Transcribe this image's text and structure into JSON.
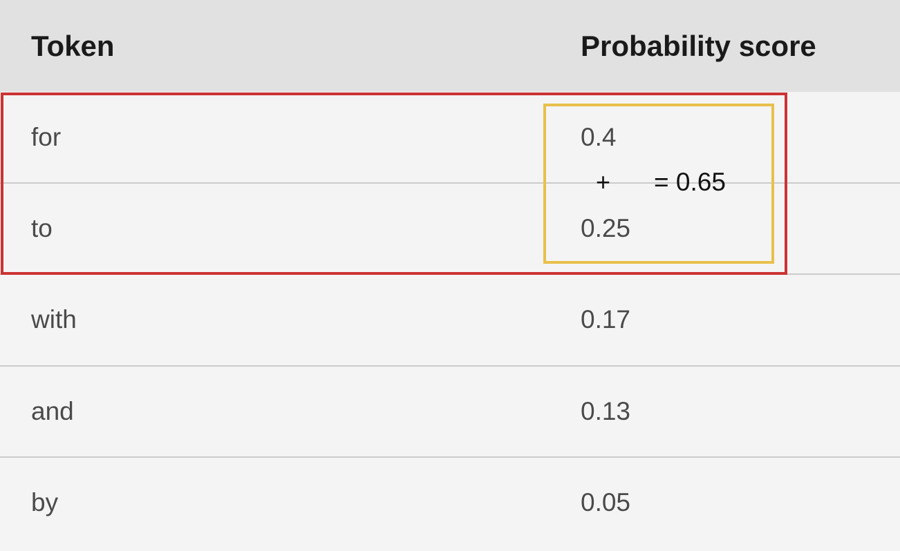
{
  "table": {
    "headers": {
      "token": "Token",
      "probability": "Probability score"
    },
    "rows": [
      {
        "token": "for",
        "score": "0.4"
      },
      {
        "token": "to",
        "score": "0.25"
      },
      {
        "token": "with",
        "score": "0.17"
      },
      {
        "token": "and",
        "score": "0.13"
      },
      {
        "token": "by",
        "score": "0.05"
      }
    ]
  },
  "annotation": {
    "plus": "+",
    "sum": "= 0.65"
  },
  "colors": {
    "highlight_red": "#cc3333",
    "highlight_yellow": "#e8c04b",
    "header_bg": "#e1e1e1",
    "row_bg": "#f4f4f4"
  }
}
